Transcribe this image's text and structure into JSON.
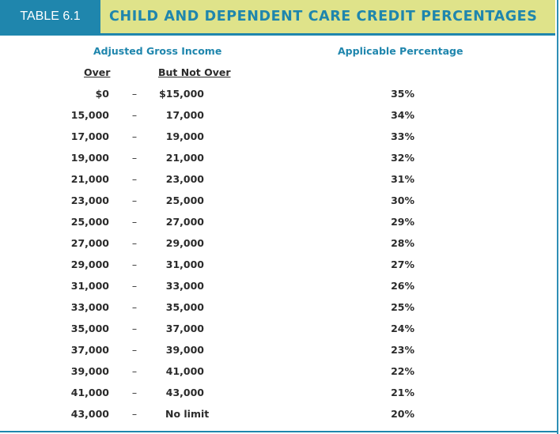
{
  "header": {
    "tag": "TABLE 6.1",
    "title": "CHILD AND DEPENDENT CARE CREDIT PERCENTAGES"
  },
  "columns": {
    "agi": "Adjusted Gross Income",
    "over": "Over",
    "but_not_over": "But Not Over",
    "percentage": "Applicable Percentage"
  },
  "dash": "–",
  "rows": [
    {
      "over": "$0",
      "not_over": "$15,000",
      "pct": "35%"
    },
    {
      "over": "15,000",
      "not_over": "17,000",
      "pct": "34%"
    },
    {
      "over": "17,000",
      "not_over": "19,000",
      "pct": "33%"
    },
    {
      "over": "19,000",
      "not_over": "21,000",
      "pct": "32%"
    },
    {
      "over": "21,000",
      "not_over": "23,000",
      "pct": "31%"
    },
    {
      "over": "23,000",
      "not_over": "25,000",
      "pct": "30%"
    },
    {
      "over": "25,000",
      "not_over": "27,000",
      "pct": "29%"
    },
    {
      "over": "27,000",
      "not_over": "29,000",
      "pct": "28%"
    },
    {
      "over": "29,000",
      "not_over": "31,000",
      "pct": "27%"
    },
    {
      "over": "31,000",
      "not_over": "33,000",
      "pct": "26%"
    },
    {
      "over": "33,000",
      "not_over": "35,000",
      "pct": "25%"
    },
    {
      "over": "35,000",
      "not_over": "37,000",
      "pct": "24%"
    },
    {
      "over": "37,000",
      "not_over": "39,000",
      "pct": "23%"
    },
    {
      "over": "39,000",
      "not_over": "41,000",
      "pct": "22%"
    },
    {
      "over": "41,000",
      "not_over": "43,000",
      "pct": "21%"
    },
    {
      "over": "43,000",
      "not_over": "No limit",
      "pct": "20%"
    }
  ],
  "colors": {
    "accent": "#1f86ad",
    "header_band": "#dfe38a",
    "text": "#2b2b2b"
  }
}
